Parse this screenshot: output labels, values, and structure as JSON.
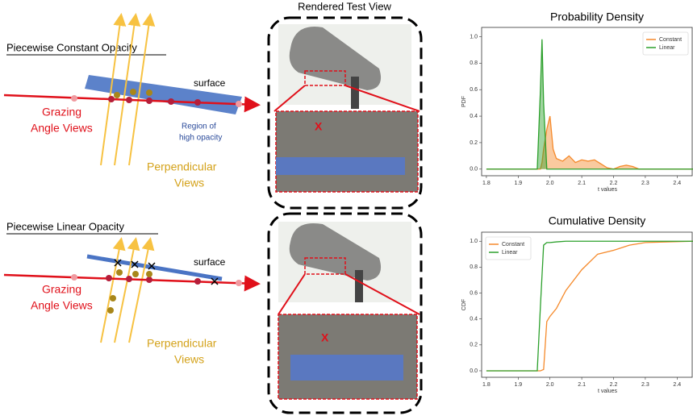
{
  "top_diagram": {
    "title": "Piecewise Constant Opacity",
    "surface": "surface",
    "grazing": [
      "Grazing",
      "Angle Views"
    ],
    "region": [
      "Region of",
      "high opacity"
    ],
    "perpendicular": [
      "Perpendicular",
      "Views"
    ]
  },
  "bottom_diagram": {
    "title": "Piecewise Linear Opacity",
    "surface": "surface",
    "grazing": [
      "Grazing",
      "Angle Views"
    ],
    "perpendicular": [
      "Perpendicular",
      "Views"
    ]
  },
  "render": {
    "title": "Rendered Test View",
    "markers": [
      "X",
      "X"
    ]
  },
  "chart_data": [
    {
      "type": "area",
      "title": "Probability Density",
      "xlabel": "t values",
      "ylabel": "PDF",
      "legend": "upper right",
      "x": [
        1.8,
        1.95,
        1.96,
        1.97,
        1.975,
        1.98,
        1.99,
        2.0,
        2.01,
        2.02,
        2.04,
        2.06,
        2.08,
        2.1,
        2.12,
        2.14,
        2.16,
        2.18,
        2.2,
        2.22,
        2.24,
        2.26,
        2.28,
        2.3,
        2.45
      ],
      "series": [
        {
          "name": "Constant",
          "color": "#f5892a",
          "values": [
            0,
            0,
            0,
            0,
            0.05,
            0.15,
            0.3,
            0.4,
            0.15,
            0.08,
            0.06,
            0.1,
            0.05,
            0.07,
            0.06,
            0.07,
            0.04,
            0.01,
            0,
            0.02,
            0.03,
            0.02,
            0,
            0,
            0
          ]
        },
        {
          "name": "Linear",
          "color": "#2ca02c",
          "values": [
            0,
            0,
            0,
            0.6,
            0.98,
            0.5,
            0,
            0,
            0,
            0,
            0,
            0,
            0,
            0,
            0,
            0,
            0,
            0,
            0,
            0,
            0,
            0,
            0,
            0,
            0
          ]
        }
      ],
      "xlim": [
        1.785,
        2.45
      ],
      "ylim": [
        -0.05,
        1.07
      ],
      "xticks": [
        1.8,
        1.9,
        {
          "value": 2,
          "label": "2.0"
        },
        2.1,
        2.2,
        2.3,
        2.4
      ],
      "yticks": [
        {
          "value": 0,
          "label": "0.0"
        },
        0.2,
        0.4,
        0.6,
        0.8,
        {
          "value": 1,
          "label": "1.0"
        }
      ]
    },
    {
      "type": "line",
      "title": "Cumulative Density",
      "xlabel": "t values",
      "ylabel": "CDF",
      "legend": "upper left",
      "x": [
        1.8,
        1.96,
        1.97,
        1.98,
        1.99,
        2.0,
        2.02,
        2.05,
        2.1,
        2.15,
        2.2,
        2.25,
        2.3,
        2.45
      ],
      "series": [
        {
          "name": "Constant",
          "color": "#f5892a",
          "values": [
            0,
            0,
            0,
            0.01,
            0.38,
            0.42,
            0.48,
            0.62,
            0.78,
            0.9,
            0.93,
            0.97,
            0.99,
            1
          ]
        },
        {
          "name": "Linear",
          "color": "#2ca02c",
          "values": [
            0,
            0,
            0.5,
            0.97,
            0.99,
            0.99,
            0.995,
            1,
            1,
            1,
            1,
            1,
            1,
            1
          ]
        }
      ],
      "xlim": [
        1.785,
        2.45
      ],
      "ylim": [
        -0.05,
        1.07
      ],
      "xticks": [
        1.8,
        1.9,
        {
          "value": 2,
          "label": "2.0"
        },
        2.1,
        2.2,
        2.3,
        2.4
      ],
      "yticks": [
        {
          "value": 0,
          "label": "0.0"
        },
        0.2,
        0.4,
        0.6,
        0.8,
        {
          "value": 1,
          "label": "1.0"
        }
      ]
    }
  ]
}
